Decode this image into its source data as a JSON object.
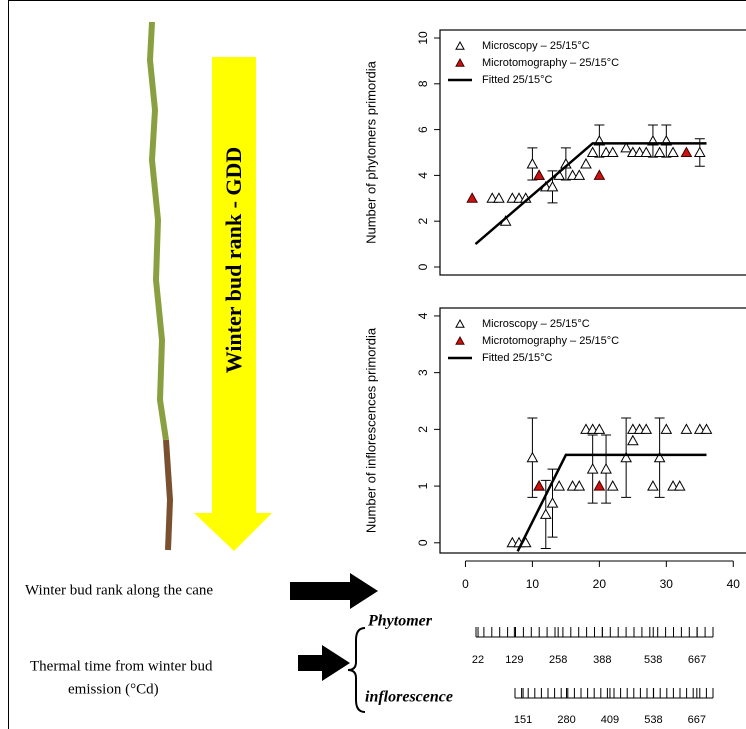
{
  "chart_data": [
    {
      "type": "scatter",
      "ylabel": "Number of phytomers primordia",
      "xlim": [
        -3.8,
        41.9
      ],
      "ylim": [
        -0.35,
        10.35
      ],
      "yticks": [
        0,
        2,
        4,
        6,
        8,
        10
      ],
      "series": [
        {
          "name": "Microscopy – 25/15°C",
          "color": "#000000",
          "mark": "open-triangle",
          "x": [
            4,
            5,
            6,
            7,
            8,
            9,
            10,
            11,
            12,
            13,
            14,
            15,
            16,
            17,
            18,
            19,
            20,
            21,
            22,
            24,
            25,
            26,
            27,
            28,
            29,
            30,
            31,
            35
          ],
          "values": [
            3,
            3,
            2,
            3,
            3,
            3,
            4.5,
            4,
            3.5,
            3.5,
            4,
            4.5,
            4,
            4,
            4.5,
            5,
            5.5,
            5,
            5,
            5.2,
            5,
            5,
            5,
            5.5,
            5,
            5.5,
            5,
            5
          ],
          "errors": [
            null,
            null,
            null,
            null,
            null,
            null,
            0.7,
            null,
            null,
            0.7,
            null,
            0.7,
            null,
            null,
            null,
            null,
            0.7,
            null,
            null,
            null,
            null,
            null,
            null,
            0.7,
            null,
            0.7,
            null,
            0.6
          ]
        },
        {
          "name": "Microtomography – 25/15°C",
          "color": "#cc1111",
          "mark": "filled-triangle",
          "x": [
            1,
            11,
            20,
            33
          ],
          "values": [
            3,
            4,
            4,
            5
          ]
        },
        {
          "name": "Fitted 25/15°C",
          "color": "#000000",
          "mark": "line",
          "x": [
            1.5,
            19,
            36
          ],
          "values": [
            1.0,
            5.4,
            5.4
          ]
        }
      ]
    },
    {
      "type": "scatter",
      "ylabel": "Number of inflorescences primordia",
      "xlim": [
        -3.8,
        41.9
      ],
      "ylim": [
        -0.18,
        4.14
      ],
      "yticks": [
        0,
        1,
        2,
        3,
        4
      ],
      "xticks": [
        0,
        10,
        20,
        30,
        40
      ],
      "series": [
        {
          "name": "Microscopy – 25/15°C",
          "color": "#000000",
          "mark": "open-triangle",
          "x": [
            7,
            8,
            9,
            10,
            11,
            12,
            13,
            14,
            16,
            17,
            18,
            19,
            19,
            20,
            21,
            22,
            24,
            25,
            25,
            26,
            27,
            28,
            29,
            30,
            31,
            32,
            33,
            35,
            36
          ],
          "values": [
            0,
            0,
            0,
            1.5,
            1,
            0.5,
            0.7,
            1,
            1,
            1,
            2,
            1.3,
            2,
            2,
            1.3,
            1,
            1.5,
            1.8,
            2,
            2,
            2,
            1,
            1.5,
            2,
            1,
            1,
            2,
            2,
            2
          ],
          "errors": [
            null,
            null,
            null,
            0.7,
            null,
            0.6,
            0.6,
            null,
            null,
            null,
            null,
            0.6,
            null,
            null,
            0.6,
            null,
            0.7,
            null,
            null,
            null,
            null,
            null,
            0.7,
            null,
            null,
            null,
            null,
            null,
            null
          ]
        },
        {
          "name": "Microtomography – 25/15°C",
          "color": "#cc1111",
          "mark": "filled-triangle",
          "x": [
            11,
            20
          ],
          "values": [
            1,
            1
          ]
        },
        {
          "name": "Fitted 25/15°C",
          "color": "#000000",
          "mark": "line",
          "x": [
            7.8,
            15,
            36
          ],
          "values": [
            -0.15,
            1.55,
            1.55
          ]
        }
      ]
    }
  ],
  "arrow_label": "Winter bud rank - GDD",
  "rank_label": "Winter bud rank along the cane",
  "thermal_label": [
    "Thermal time from winter bud",
    "emission (°Cd)"
  ],
  "scales": [
    {
      "label": "Phytomer",
      "lim": [
        16,
        714
      ],
      "ticks": [
        22,
        129,
        258,
        388,
        538,
        667
      ]
    },
    {
      "label": "inflorescence",
      "lim": [
        127,
        715
      ],
      "ticks": [
        151,
        280,
        409,
        538,
        667
      ]
    }
  ]
}
